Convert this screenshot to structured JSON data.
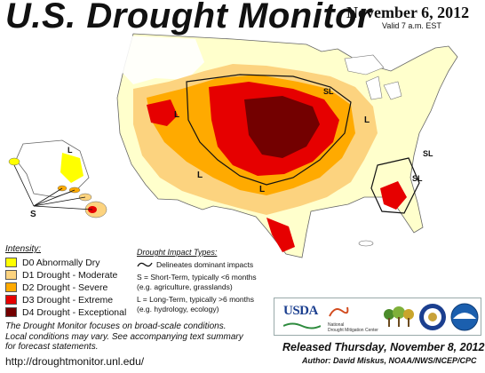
{
  "header": {
    "title": "U.S. Drought Monitor",
    "date": "November 6, 2012",
    "valid": "Valid 7 a.m. EST"
  },
  "legend": {
    "title": "Intensity:",
    "items": [
      {
        "label": "D0 Abnormally Dry",
        "color": "#ffff00"
      },
      {
        "label": "D1 Drought - Moderate",
        "color": "#fcd37f"
      },
      {
        "label": "D2 Drought - Severe",
        "color": "#ffaa00"
      },
      {
        "label": "D3 Drought - Extreme",
        "color": "#e60000"
      },
      {
        "label": "D4 Drought - Exceptional",
        "color": "#730000"
      }
    ]
  },
  "impact": {
    "title": "Drought Impact Types:",
    "line_symbol": "Delineates dominant impacts",
    "s_line1": "S = Short-Term, typically <6 months",
    "s_line2": "(e.g. agriculture, grasslands)",
    "l_line1": "L = Long-Term, typically >6 months",
    "l_line2": "(e.g. hydrology, ecology)"
  },
  "map_labels": {
    "L": "L",
    "S": "S",
    "SL": "SL"
  },
  "footnote": {
    "line1": "The Drought Monitor focuses on broad-scale conditions.",
    "line2": "Local conditions may vary. See accompanying text summary",
    "line3": "for forecast statements."
  },
  "url": "http://droughtmonitor.unl.edu/",
  "logos": {
    "usda": "USDA",
    "ndmc1": "National",
    "ndmc2": "Drought Mitigation Center"
  },
  "released": "Released Thursday, November 8, 2012",
  "author": "Author: David Miskus, NOAA/NWS/NCEP/CPC"
}
